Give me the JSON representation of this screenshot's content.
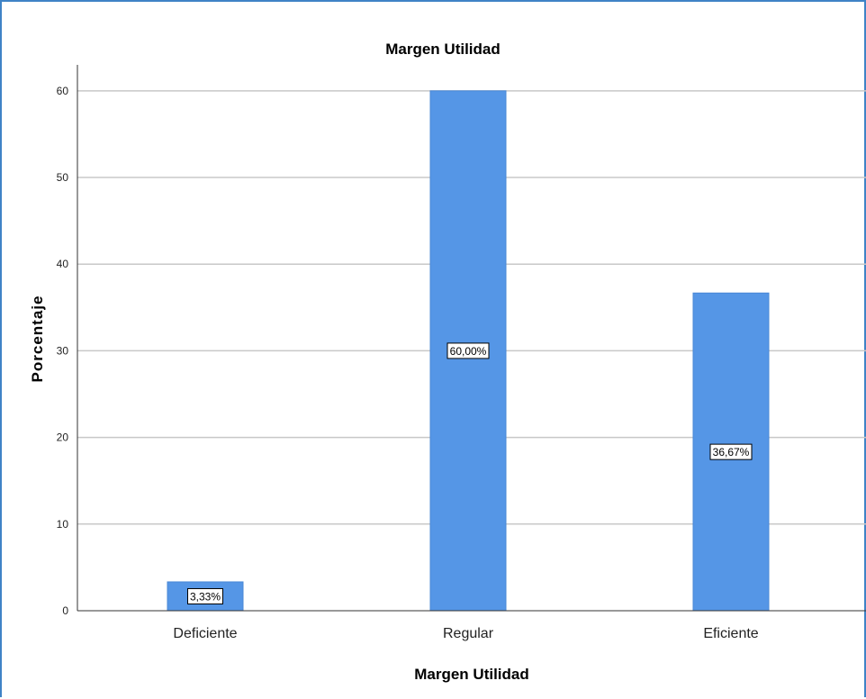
{
  "chart_data": {
    "type": "bar",
    "title": "Margen Utilidad",
    "xlabel": "Margen Utilidad",
    "ylabel": "Porcentaje",
    "categories": [
      "Deficiente",
      "Regular",
      "Eficiente"
    ],
    "values": [
      3.33,
      60.0,
      36.67
    ],
    "data_labels": [
      "3,33%",
      "60,00%",
      "36,67%"
    ],
    "ylim": [
      0,
      63
    ],
    "yticks": [
      0,
      10,
      20,
      30,
      40,
      50,
      60
    ],
    "grid": "horizontal",
    "legend": "none",
    "bar_color": "#5596e6",
    "grid_color": "#c8c8c8",
    "frame_color": "#3f83c6"
  }
}
